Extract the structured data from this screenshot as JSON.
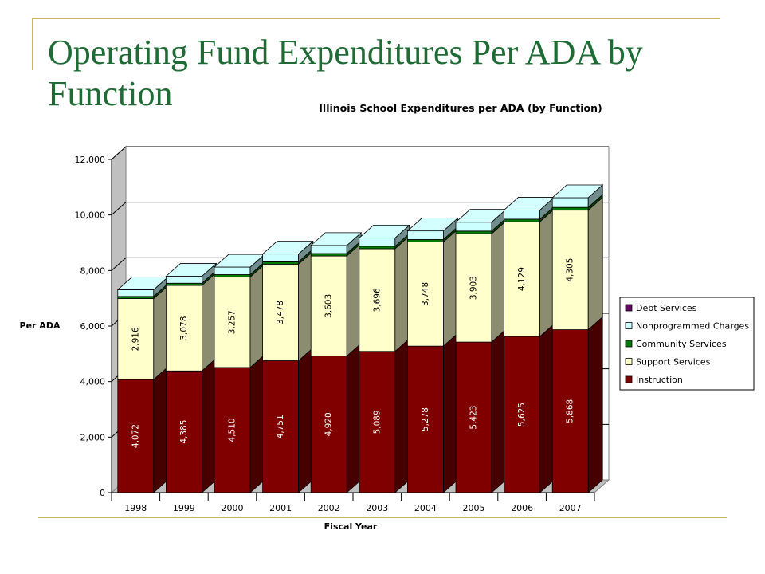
{
  "slide": {
    "title": "Operating Fund Expenditures Per ADA by Function"
  },
  "chart_data": {
    "type": "bar",
    "stacked": true,
    "three_d": true,
    "title": "Illinois School Expenditures per ADA (by Function)",
    "xlabel": "Fiscal Year",
    "ylabel": "Per ADA",
    "ylim": [
      0,
      12000
    ],
    "yticks": [
      "0",
      "2,000",
      "4,000",
      "6,000",
      "8,000",
      "10,000",
      "12,000"
    ],
    "grid": true,
    "legend_position": "right",
    "categories": [
      "1998",
      "1999",
      "2000",
      "2001",
      "2002",
      "2003",
      "2004",
      "2005",
      "2006",
      "2007"
    ],
    "series": [
      {
        "name": "Instruction",
        "color": "#800000",
        "values": [
          4072,
          4385,
          4510,
          4751,
          4920,
          5089,
          5278,
          5423,
          5625,
          5868
        ],
        "labels": [
          "4,072",
          "4,385",
          "4,510",
          "4,751",
          "4,920",
          "5,089",
          "5,278",
          "5,423",
          "5,625",
          "5,868"
        ]
      },
      {
        "name": "Support Services",
        "color": "#ffffcc",
        "values": [
          2916,
          3078,
          3257,
          3478,
          3603,
          3696,
          3748,
          3903,
          4129,
          4305
        ],
        "labels": [
          "2,916",
          "3,078",
          "3,257",
          "3,478",
          "3,603",
          "3,696",
          "3,748",
          "3,903",
          "4,129",
          "4,305"
        ]
      },
      {
        "name": "Community Services",
        "color": "#007a00",
        "values": [
          80,
          80,
          85,
          85,
          90,
          90,
          90,
          95,
          95,
          100
        ]
      },
      {
        "name": "Nonprogrammed Charges",
        "color": "#ccffff",
        "values": [
          240,
          250,
          270,
          280,
          290,
          300,
          310,
          320,
          330,
          350
        ]
      },
      {
        "name": "Debt Services",
        "color": "#660066",
        "values": [
          0,
          0,
          0,
          0,
          0,
          0,
          0,
          0,
          0,
          0
        ]
      }
    ],
    "legend_order": [
      "Debt Services",
      "Nonprogrammed Charges",
      "Community Services",
      "Support Services",
      "Instruction"
    ]
  }
}
